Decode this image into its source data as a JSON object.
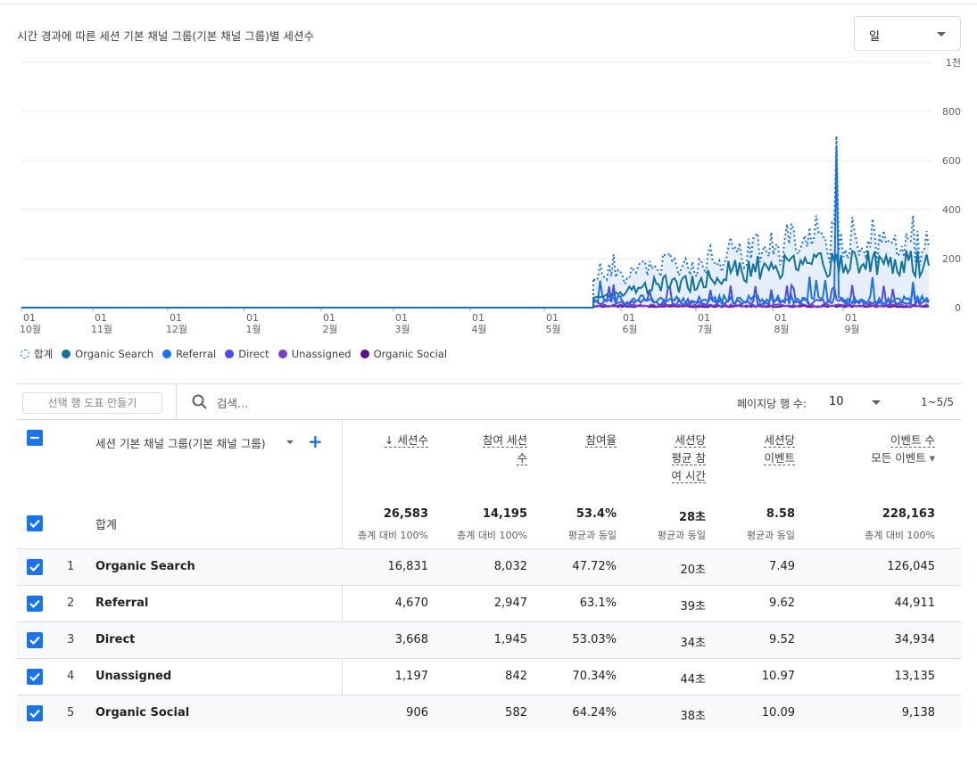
{
  "chart": {
    "title": "시간 경과에 따른 세션 기본 채널 그룹(기본 채널 그룹)별 세션수",
    "granularity": "일",
    "y_ticks": [
      "1천",
      "800",
      "600",
      "400",
      "200",
      "0"
    ],
    "x_ticks": [
      {
        "day": "01",
        "month": "10월"
      },
      {
        "day": "01",
        "month": "11월"
      },
      {
        "day": "01",
        "month": "12월"
      },
      {
        "day": "01",
        "month": "1월"
      },
      {
        "day": "01",
        "month": "2월"
      },
      {
        "day": "01",
        "month": "3월"
      },
      {
        "day": "01",
        "month": "4월"
      },
      {
        "day": "01",
        "month": "5월"
      },
      {
        "day": "01",
        "month": "6월"
      },
      {
        "day": "01",
        "month": "7월"
      },
      {
        "day": "01",
        "month": "8월"
      },
      {
        "day": "01",
        "month": "9월"
      }
    ],
    "legend": [
      {
        "label": "합계",
        "color": "#1a73e8",
        "style": "dashed"
      },
      {
        "label": "Organic Search",
        "color": "#12739c"
      },
      {
        "label": "Referral",
        "color": "#1a73e8"
      },
      {
        "label": "Direct",
        "color": "#4b4de8"
      },
      {
        "label": "Unassigned",
        "color": "#7b3fc9"
      },
      {
        "label": "Organic Social",
        "color": "#5c0f8b"
      }
    ]
  },
  "chart_data": {
    "type": "line",
    "ylim": [
      0,
      1000
    ],
    "grid": true,
    "legend_position": "bottom-left",
    "series": [
      {
        "name": "합계",
        "values_approx": {
          "before_may_20": 0,
          "june": 150,
          "july": 220,
          "august": 280,
          "september_peak": 700,
          "september_end": 260
        }
      },
      {
        "name": "Organic Search",
        "values_approx": {
          "before_may_20": 0,
          "june": 90,
          "july": 140,
          "august": 170,
          "september": 180
        }
      },
      {
        "name": "Referral",
        "values_approx": {
          "before_may_20": 0,
          "summer": 40,
          "september_peak": 660
        }
      },
      {
        "name": "Direct",
        "values_approx": {
          "before_may_20": 0,
          "summer": 25
        }
      },
      {
        "name": "Unassigned",
        "values_approx": {
          "before_may_20": 0,
          "summer": 10
        }
      },
      {
        "name": "Organic Social",
        "values_approx": {
          "before_may_20": 0,
          "summer": 5
        }
      }
    ]
  },
  "toolbar": {
    "compare_button": "선택 행 도표 만들기",
    "search_placeholder": "검색...",
    "rows_per_page_label": "페이지당 행 수:",
    "rows_per_page_value": "10",
    "pagination": "1~5/5"
  },
  "table": {
    "dimension_header": "세션 기본 채널 그룹(기본 채널 그룹)",
    "metric_headers": [
      {
        "lines": [
          "↓ 세션수"
        ]
      },
      {
        "lines": [
          "참여 세션",
          "수"
        ]
      },
      {
        "lines": [
          "참여율"
        ]
      },
      {
        "lines": [
          "세션당",
          "평균 참",
          "여 시간"
        ]
      },
      {
        "lines": [
          "세션당",
          "이벤트"
        ]
      },
      {
        "lines": [
          "이벤트 수",
          "모든 이벤트"
        ]
      }
    ],
    "totals": {
      "label": "합계",
      "values": [
        "26,583",
        "14,195",
        "53.4%",
        "28초",
        "8.58",
        "228,163"
      ],
      "subs": [
        "총계 대비 100%",
        "총계 대비 100%",
        "평균과 동일",
        "평균과 동일",
        "평균과 동일",
        "총계 대비 100%"
      ]
    },
    "rows": [
      {
        "index": "1",
        "name": "Organic Search",
        "values": [
          "16,831",
          "8,032",
          "47.72%",
          "20초",
          "7.49",
          "126,045"
        ]
      },
      {
        "index": "2",
        "name": "Referral",
        "values": [
          "4,670",
          "2,947",
          "63.1%",
          "39초",
          "9.62",
          "44,911"
        ]
      },
      {
        "index": "3",
        "name": "Direct",
        "values": [
          "3,668",
          "1,945",
          "53.03%",
          "34초",
          "9.52",
          "34,934"
        ]
      },
      {
        "index": "4",
        "name": "Unassigned",
        "values": [
          "1,197",
          "842",
          "70.34%",
          "44초",
          "10.97",
          "13,135"
        ]
      },
      {
        "index": "5",
        "name": "Organic Social",
        "values": [
          "906",
          "582",
          "64.24%",
          "38초",
          "10.09",
          "9,138"
        ]
      }
    ]
  }
}
